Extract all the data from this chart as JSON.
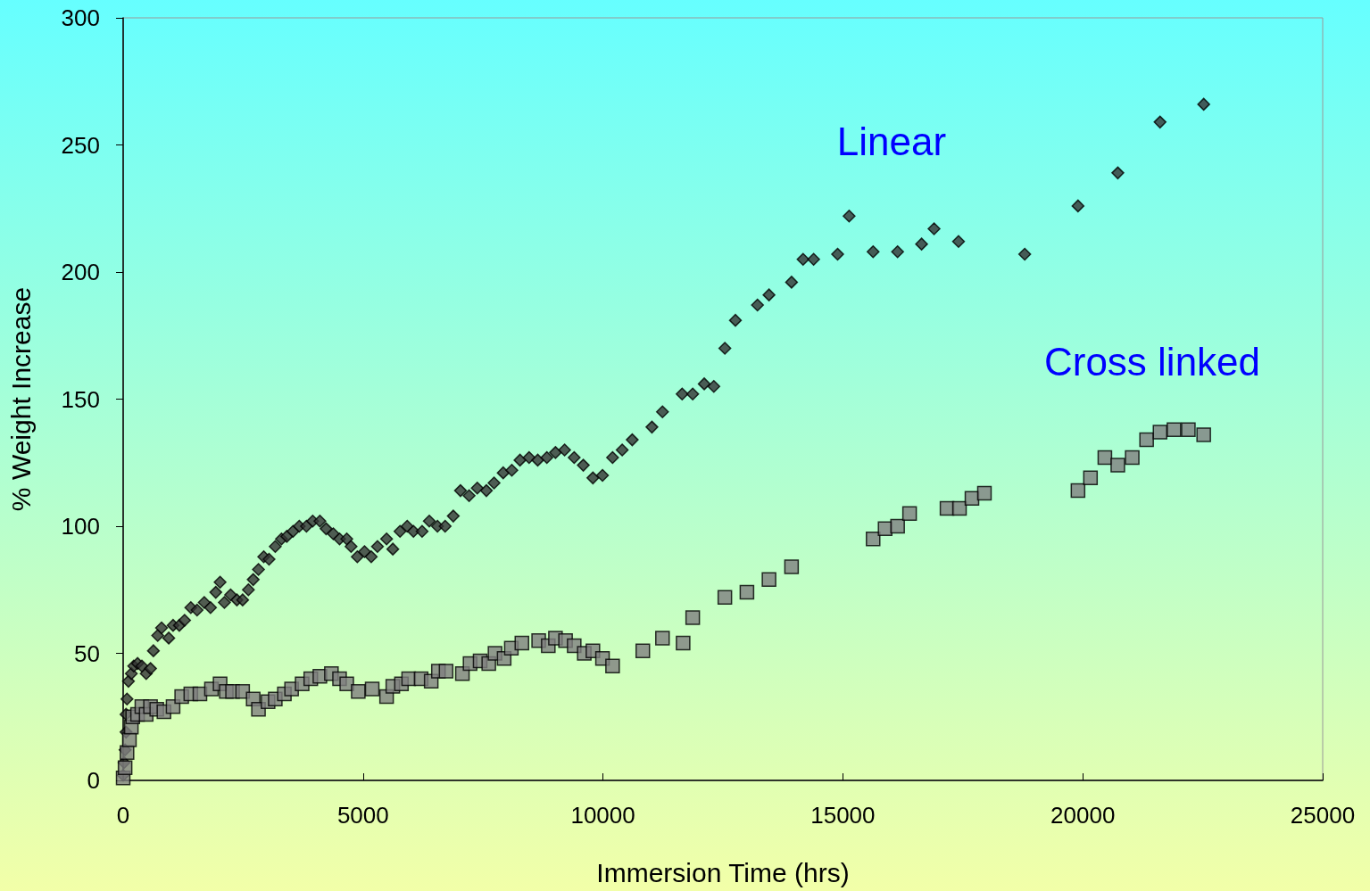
{
  "chart_data": {
    "type": "scatter",
    "xlabel": "Immersion Time (hrs)",
    "ylabel": "% Weight Increase",
    "xlim": [
      0,
      25000
    ],
    "xticks": [
      0,
      5000,
      10000,
      15000,
      20000,
      25000
    ],
    "ylim": [
      0,
      300
    ],
    "yticks": [
      0,
      50,
      100,
      150,
      200,
      250,
      300
    ],
    "grid": false,
    "series": [
      {
        "name": "Linear",
        "color": "#333333",
        "marker": "diamond",
        "x": [
          0,
          20,
          40,
          60,
          60,
          80,
          110,
          170,
          220,
          300,
          390,
          480,
          570,
          630,
          720,
          800,
          950,
          1040,
          1170,
          1280,
          1410,
          1540,
          1690,
          1820,
          1930,
          2020,
          2110,
          2240,
          2370,
          2490,
          2610,
          2710,
          2820,
          2930,
          3040,
          3170,
          3300,
          3410,
          3540,
          3670,
          3820,
          3950,
          4100,
          4230,
          4380,
          4510,
          4660,
          4750,
          4880,
          5030,
          5170,
          5300,
          5490,
          5620,
          5770,
          5920,
          6050,
          6230,
          6380,
          6550,
          6710,
          6880,
          7030,
          7210,
          7380,
          7570,
          7730,
          7920,
          8100,
          8270,
          8460,
          8640,
          8830,
          9010,
          9200,
          9400,
          9590,
          9790,
          9990,
          10200,
          10400,
          10610,
          11020,
          11240,
          11650,
          11870,
          12110,
          12310,
          12540,
          12760,
          13220,
          13460,
          13930,
          14170,
          14390,
          14890,
          15130,
          15630,
          16140,
          16640,
          16900,
          17410,
          18790,
          19900,
          20730,
          21610,
          22520
        ],
        "values": [
          2,
          7,
          12,
          19,
          26,
          32,
          39,
          42,
          45,
          46,
          45,
          42,
          44,
          51,
          57,
          60,
          56,
          61,
          61,
          63,
          68,
          67,
          70,
          68,
          74,
          78,
          70,
          73,
          71,
          71,
          75,
          79,
          83,
          88,
          87,
          92,
          95,
          96,
          98,
          100,
          100,
          102,
          102,
          99,
          97,
          95,
          95,
          92,
          88,
          90,
          88,
          92,
          95,
          91,
          98,
          100,
          98,
          98,
          102,
          100,
          100,
          104,
          114,
          112,
          115,
          114,
          117,
          121,
          122,
          126,
          127,
          126,
          127,
          129,
          130,
          127,
          124,
          119,
          120,
          127,
          130,
          134,
          139,
          145,
          152,
          152,
          156,
          155,
          170,
          181,
          187,
          191,
          196,
          205,
          205,
          207,
          222,
          208,
          208,
          211,
          217,
          212,
          207,
          226,
          239,
          259,
          266
        ]
      },
      {
        "name": "Cross linked",
        "color": "#808080",
        "marker": "square",
        "x": [
          0,
          40,
          80,
          130,
          170,
          200,
          300,
          390,
          480,
          570,
          700,
          850,
          1040,
          1220,
          1410,
          1600,
          1840,
          2020,
          2150,
          2280,
          2490,
          2710,
          2820,
          3020,
          3170,
          3360,
          3510,
          3730,
          3910,
          4100,
          4340,
          4510,
          4660,
          4900,
          5190,
          5490,
          5620,
          5800,
          5950,
          6210,
          6420,
          6570,
          6730,
          7070,
          7230,
          7440,
          7620,
          7750,
          7940,
          8090,
          8310,
          8660,
          8860,
          9010,
          9220,
          9400,
          9610,
          9790,
          9990,
          10200,
          10830,
          11240,
          11670,
          11870,
          12540,
          13000,
          13460,
          13930,
          15630,
          15880,
          16140,
          16390,
          17170,
          17430,
          17690,
          17950,
          19900,
          20160,
          20460,
          20730,
          21030,
          21330,
          21610,
          21900,
          22200,
          22520
        ],
        "values": [
          1,
          5,
          11,
          16,
          21,
          25,
          26,
          29,
          26,
          29,
          28,
          27,
          29,
          33,
          34,
          34,
          36,
          38,
          35,
          35,
          35,
          32,
          28,
          31,
          32,
          34,
          36,
          38,
          40,
          41,
          42,
          40,
          38,
          35,
          36,
          33,
          37,
          38,
          40,
          40,
          39,
          43,
          43,
          42,
          46,
          47,
          46,
          50,
          48,
          52,
          54,
          55,
          53,
          56,
          55,
          53,
          50,
          51,
          48,
          45,
          51,
          56,
          54,
          64,
          72,
          74,
          79,
          84,
          95,
          99,
          100,
          105,
          107,
          107,
          111,
          113,
          114,
          119,
          127,
          124,
          127,
          134,
          137,
          138,
          138,
          136
        ]
      }
    ]
  }
}
